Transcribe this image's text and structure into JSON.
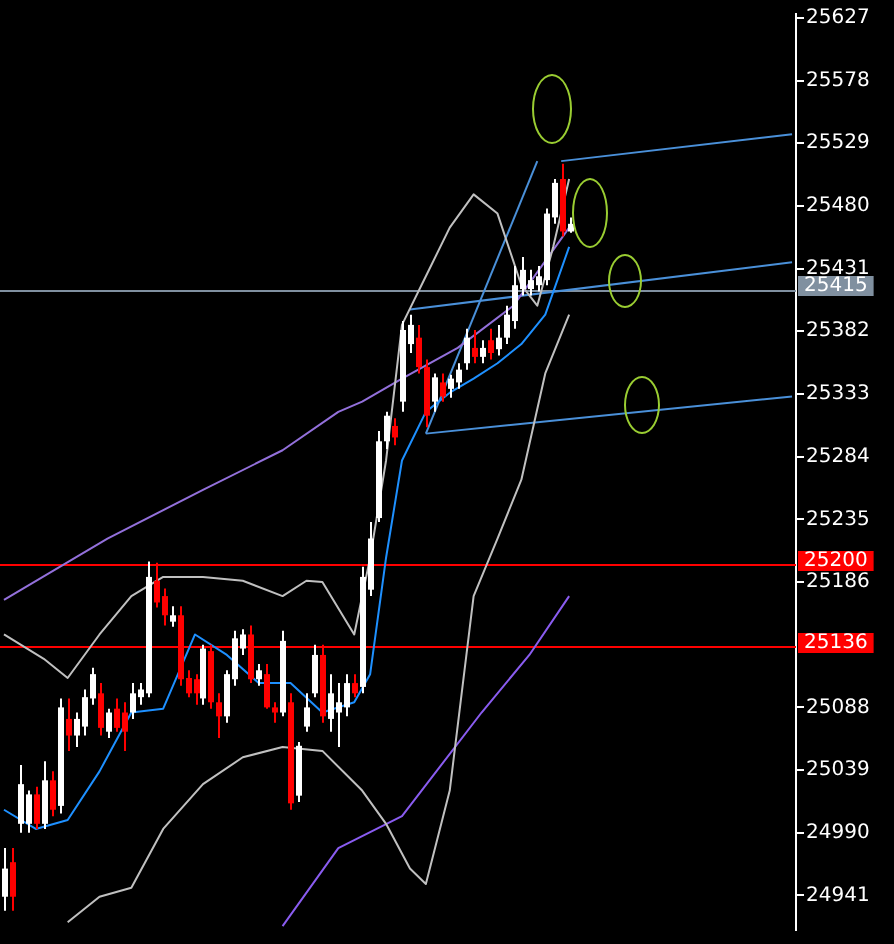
{
  "chart_data": {
    "type": "candlestick",
    "categories": [
      null,
      null,
      null,
      null,
      null,
      null,
      null,
      null,
      null,
      null,
      null,
      null,
      null,
      null,
      null,
      null,
      null,
      null,
      null,
      null,
      null,
      null,
      null,
      null,
      null,
      null,
      null,
      null,
      null,
      null,
      null,
      null,
      null,
      null,
      null,
      null,
      null,
      null,
      null,
      null,
      null,
      null,
      null,
      null,
      null,
      null,
      null,
      null,
      null,
      null,
      null,
      null,
      null,
      null,
      null,
      null,
      null,
      null,
      null,
      null,
      null,
      null,
      null,
      null,
      null,
      null,
      null,
      null,
      null,
      null,
      null,
      null,
      null,
      null,
      null,
      null,
      null,
      null,
      null,
      null,
      null,
      null,
      null,
      null,
      null,
      null,
      null,
      null,
      null,
      null,
      null,
      null,
      null,
      null,
      null,
      null,
      null,
      null,
      null,
      null
    ],
    "ohlc": [
      [
        24940,
        24978,
        24929,
        24962
      ],
      [
        24967,
        24978,
        24929,
        24940
      ],
      [
        24997,
        25043,
        24990,
        25028
      ],
      [
        24997,
        25023,
        24990,
        25020
      ],
      [
        25020,
        25026,
        24993,
        24997
      ],
      [
        24997,
        25046,
        24993,
        25031
      ],
      [
        25031,
        25038,
        25003,
        25008
      ],
      [
        25011,
        25095,
        25005,
        25088
      ],
      [
        25079,
        25095,
        25054,
        25066
      ],
      [
        25066,
        25084,
        25057,
        25079
      ],
      [
        25073,
        25102,
        25066,
        25096
      ],
      [
        25095,
        25119,
        25090,
        25114
      ],
      [
        25099,
        25107,
        25066,
        25072
      ],
      [
        25069,
        25087,
        25064,
        25084
      ],
      [
        25087,
        25095,
        25069,
        25072
      ],
      [
        25084,
        25092,
        25054,
        25069
      ],
      [
        25084,
        25107,
        25079,
        25099
      ],
      [
        25096,
        25107,
        25090,
        25102
      ],
      [
        25099,
        25202,
        25096,
        25190
      ],
      [
        25187,
        25201,
        25166,
        25170
      ],
      [
        25175,
        25181,
        25152,
        25160
      ],
      [
        25155,
        25167,
        25151,
        25160
      ],
      [
        25160,
        25167,
        25105,
        25110
      ],
      [
        25111,
        25117,
        25096,
        25099
      ],
      [
        25110,
        25114,
        25090,
        25099
      ],
      [
        25095,
        25137,
        25090,
        25134
      ],
      [
        25132,
        25137,
        25087,
        25092
      ],
      [
        25092,
        25099,
        25064,
        25081
      ],
      [
        25081,
        25117,
        25076,
        25114
      ],
      [
        25110,
        25148,
        25105,
        25142
      ],
      [
        25134,
        25149,
        25129,
        25145
      ],
      [
        25145,
        25152,
        25107,
        25110
      ],
      [
        25110,
        25122,
        25105,
        25117
      ],
      [
        25114,
        25122,
        25087,
        25088
      ],
      [
        25088,
        25092,
        25076,
        25084
      ],
      [
        25084,
        25148,
        25081,
        25140
      ],
      [
        25092,
        25099,
        25008,
        25013
      ],
      [
        25019,
        25061,
        25014,
        25058
      ],
      [
        25073,
        25099,
        25069,
        25088
      ],
      [
        25099,
        25137,
        25096,
        25129
      ],
      [
        25129,
        25137,
        25076,
        25081
      ],
      [
        25079,
        25114,
        25069,
        25099
      ],
      [
        25084,
        25107,
        25057,
        25092
      ],
      [
        25088,
        25114,
        25081,
        25107
      ],
      [
        25107,
        25114,
        25096,
        25099
      ],
      [
        25104,
        25198,
        25099,
        25190
      ],
      [
        25180,
        25233,
        25175,
        25220
      ],
      [
        25236,
        25304,
        25233,
        25296
      ],
      [
        25296,
        25319,
        25290,
        25316
      ],
      [
        25308,
        25314,
        25293,
        25299
      ],
      [
        25327,
        25390,
        25319,
        25383
      ],
      [
        25372,
        25395,
        25365,
        25387
      ],
      [
        25377,
        25387,
        25349,
        25354
      ],
      [
        25354,
        25360,
        25307,
        25316
      ],
      [
        25327,
        25349,
        25319,
        25346
      ],
      [
        25342,
        25349,
        25327,
        25331
      ],
      [
        25337,
        25348,
        25330,
        25345
      ],
      [
        25342,
        25357,
        25337,
        25352
      ],
      [
        25357,
        25384,
        25352,
        25377
      ],
      [
        25369,
        25383,
        25357,
        25362
      ],
      [
        25362,
        25375,
        25357,
        25369
      ],
      [
        25375,
        25384,
        25360,
        25365
      ],
      [
        25368,
        25387,
        25363,
        25377
      ],
      [
        25377,
        25402,
        25372,
        25395
      ],
      [
        25390,
        25433,
        25384,
        25418
      ],
      [
        25415,
        25440,
        25410,
        25430
      ],
      [
        25415,
        25430,
        25410,
        25422
      ],
      [
        25418,
        25433,
        25413,
        25425
      ],
      [
        25422,
        25478,
        25418,
        25474
      ],
      [
        25471,
        25501,
        25466,
        25498
      ],
      [
        25501,
        25513,
        25456,
        25460
      ],
      [
        25460,
        25471,
        25459,
        25466
      ],
      null,
      null,
      null,
      null,
      null,
      null,
      null,
      null,
      null,
      null,
      null,
      null,
      null,
      null,
      null,
      null,
      null,
      null,
      null,
      null,
      null,
      null,
      null,
      null,
      null,
      null,
      null,
      null
    ],
    "colors": [
      "#ffffff",
      "#ff0000",
      "#ffffff",
      "#ffffff",
      "#ff0000",
      "#ffffff",
      "#ff0000",
      "#ffffff",
      "#ff0000",
      "#ffffff",
      "#ffffff",
      "#ffffff",
      "#ff0000",
      "#ffffff",
      "#ff0000",
      "#ff0000",
      "#ffffff",
      "#ffffff",
      "#ffffff",
      "#ff0000",
      "#ff0000",
      "#ffffff",
      "#ff0000",
      "#ff0000",
      "#ff0000",
      "#ffffff",
      "#ff0000",
      "#ff0000",
      "#ffffff",
      "#ffffff",
      "#ffffff",
      "#ff0000",
      "#ffffff",
      "#ff0000",
      "#ff0000",
      "#ffffff",
      "#ff0000",
      "#ffffff",
      "#ffffff",
      "#ffffff",
      "#ff0000",
      "#ffffff",
      "#ffffff",
      "#ffffff",
      "#ff0000",
      "#ffffff",
      "#ffffff",
      "#ffffff",
      "#ffffff",
      "#ff0000",
      "#ffffff",
      "#ffffff",
      "#ff0000",
      "#ff0000",
      "#ffffff",
      "#ff0000",
      "#ffffff",
      "#ffffff",
      "#ffffff",
      "#ff0000",
      "#ffffff",
      "#ff0000",
      "#ffffff",
      "#ffffff",
      "#ffffff",
      "#ffffff",
      "#ffffff",
      "#ffffff",
      "#ffffff",
      "#ffffff",
      "#ff0000",
      "#ffffff",
      null,
      null,
      null,
      null,
      null,
      null,
      null,
      null,
      null,
      null,
      null,
      null,
      null,
      null,
      null,
      null,
      null,
      null,
      null,
      null,
      null,
      null,
      null,
      null,
      null,
      null,
      null,
      null
    ],
    "series": [
      {
        "type": "line",
        "color": "#c0c0c0",
        "values": [
          25145,
          null,
          null,
          null,
          null,
          25126,
          null,
          null,
          25111,
          null,
          null,
          null,
          25145,
          null,
          null,
          null,
          25175,
          null,
          null,
          null,
          25190,
          null,
          null,
          null,
          null,
          25190,
          null,
          null,
          null,
          null,
          25187,
          null,
          null,
          null,
          null,
          25175,
          null,
          null,
          25187,
          null,
          25186,
          null,
          null,
          null,
          25145,
          null,
          25205,
          null,
          25281,
          null,
          25387,
          null,
          null,
          25425,
          null,
          null,
          25463,
          null,
          null,
          25489,
          null,
          null,
          25474,
          null,
          null,
          25418,
          null,
          25402,
          null,
          25448,
          null,
          25501,
          null,
          null,
          null,
          null,
          null,
          null,
          null,
          null,
          null,
          null,
          null,
          null,
          null,
          null,
          null,
          null,
          null,
          null,
          null,
          null,
          null,
          null,
          null,
          null,
          null,
          null,
          null,
          null
        ]
      },
      {
        "type": "line",
        "color": "#c0c0c0",
        "values": [
          null,
          null,
          null,
          null,
          null,
          null,
          null,
          null,
          24920,
          null,
          null,
          null,
          24940,
          null,
          null,
          null,
          24947,
          null,
          null,
          null,
          24993,
          null,
          null,
          null,
          null,
          25028,
          null,
          null,
          null,
          null,
          25049,
          null,
          null,
          null,
          null,
          25057,
          null,
          null,
          null,
          null,
          25054,
          null,
          null,
          null,
          null,
          25023,
          null,
          null,
          24997,
          null,
          null,
          24962,
          null,
          24950,
          null,
          null,
          25023,
          null,
          null,
          25175,
          null,
          null,
          25220,
          null,
          null,
          25266,
          null,
          null,
          25349,
          null,
          null,
          25395,
          null,
          null,
          null,
          null,
          null,
          null,
          null,
          null,
          null,
          null,
          null,
          null,
          null,
          null,
          null,
          null,
          null,
          null,
          null,
          null,
          null,
          null,
          null,
          null,
          null,
          null,
          null,
          null
        ]
      },
      {
        "type": "line",
        "color": "#1e90ff",
        "values": [
          25008,
          null,
          null,
          null,
          24993,
          null,
          null,
          null,
          25000,
          null,
          null,
          null,
          25038,
          null,
          null,
          null,
          25084,
          null,
          null,
          null,
          25087,
          null,
          null,
          null,
          25145,
          null,
          null,
          null,
          25129,
          null,
          null,
          null,
          25107,
          null,
          null,
          null,
          25107,
          null,
          null,
          null,
          25084,
          null,
          null,
          null,
          25092,
          null,
          25114,
          null,
          25205,
          null,
          25281,
          null,
          null,
          25319,
          null,
          null,
          25334,
          null,
          null,
          25345,
          null,
          null,
          25357,
          null,
          null,
          25372,
          null,
          null,
          25395,
          null,
          null,
          25448,
          null,
          null,
          null,
          null,
          null,
          null,
          null,
          null,
          null,
          null,
          null,
          null,
          null,
          null,
          null,
          null,
          null,
          null,
          null,
          null,
          null,
          null,
          null,
          null,
          null,
          null,
          null,
          null
        ]
      },
      {
        "type": "line",
        "color": "#9370db",
        "values": [
          25172,
          null,
          null,
          null,
          null,
          null,
          null,
          null,
          null,
          null,
          null,
          null,
          null,
          25220,
          null,
          null,
          null,
          null,
          null,
          null,
          null,
          null,
          null,
          null,
          null,
          25258,
          null,
          null,
          null,
          null,
          null,
          null,
          null,
          null,
          null,
          25289,
          null,
          null,
          null,
          null,
          null,
          null,
          25319,
          null,
          null,
          25327,
          null,
          null,
          null,
          null,
          25345,
          null,
          null,
          null,
          null,
          null,
          null,
          25369,
          null,
          null,
          null,
          null,
          null,
          null,
          25402,
          null,
          null,
          null,
          null,
          null,
          null,
          25463,
          null,
          null,
          null,
          null,
          null,
          null,
          null,
          null,
          null,
          null,
          null,
          null,
          null,
          null,
          null,
          null,
          null,
          null,
          null,
          null,
          null,
          null,
          null,
          null,
          null,
          null,
          null,
          null
        ]
      },
      {
        "type": "line",
        "color": "#8a5cf0",
        "values": [
          null,
          null,
          null,
          null,
          null,
          null,
          null,
          null,
          null,
          null,
          null,
          null,
          null,
          null,
          null,
          null,
          null,
          null,
          null,
          null,
          null,
          null,
          null,
          null,
          null,
          null,
          null,
          null,
          null,
          null,
          null,
          null,
          null,
          null,
          null,
          24917,
          null,
          null,
          null,
          null,
          null,
          null,
          24978,
          null,
          null,
          null,
          null,
          null,
          null,
          null,
          25003,
          null,
          null,
          null,
          null,
          null,
          null,
          null,
          null,
          null,
          25084,
          null,
          null,
          null,
          null,
          null,
          25129,
          null,
          null,
          null,
          null,
          25175,
          null,
          null,
          null,
          null,
          null,
          null,
          null,
          null,
          null,
          null,
          null,
          null,
          null,
          null,
          null,
          null,
          null,
          null,
          null,
          null,
          null,
          null,
          null,
          null,
          null,
          null,
          null,
          null
        ]
      },
      {
        "type": "line",
        "color": "#4a90d9",
        "values": [
          null,
          null,
          null,
          null,
          null,
          null,
          null,
          null,
          null,
          null,
          null,
          null,
          null,
          null,
          null,
          null,
          null,
          null,
          null,
          null,
          null,
          null,
          null,
          null,
          null,
          null,
          null,
          null,
          null,
          null,
          null,
          null,
          null,
          null,
          null,
          null,
          null,
          null,
          null,
          null,
          null,
          null,
          null,
          null,
          null,
          null,
          null,
          null,
          null,
          null,
          null,
          null,
          null,
          null,
          null,
          null,
          null,
          null,
          null,
          null,
          null,
          null,
          null,
          null,
          null,
          null,
          null,
          null,
          null,
          null,
          25515,
          null,
          null,
          null,
          null,
          null,
          null,
          null,
          null,
          null,
          null,
          null,
          null,
          null,
          null,
          null,
          null,
          null,
          null,
          null,
          null,
          null,
          null,
          null,
          null,
          null,
          null,
          null,
          null,
          25536
        ]
      },
      {
        "type": "line",
        "color": "#4a90d9",
        "values": [
          null,
          null,
          null,
          null,
          null,
          null,
          null,
          null,
          null,
          null,
          null,
          null,
          null,
          null,
          null,
          null,
          null,
          null,
          null,
          null,
          null,
          null,
          null,
          null,
          null,
          null,
          null,
          null,
          null,
          null,
          null,
          null,
          null,
          null,
          null,
          null,
          null,
          null,
          null,
          null,
          null,
          null,
          null,
          null,
          null,
          null,
          null,
          null,
          null,
          null,
          null,
          25399,
          null,
          null,
          null,
          null,
          null,
          null,
          null,
          null,
          null,
          null,
          null,
          null,
          null,
          null,
          null,
          null,
          null,
          null,
          null,
          null,
          null,
          null,
          null,
          null,
          null,
          null,
          null,
          null,
          null,
          null,
          null,
          null,
          null,
          null,
          null,
          null,
          null,
          null,
          null,
          null,
          null,
          null,
          null,
          null,
          null,
          null,
          null,
          25436
        ]
      },
      {
        "type": "line",
        "color": "#4a90d9",
        "values": [
          null,
          null,
          null,
          null,
          null,
          null,
          null,
          null,
          null,
          null,
          null,
          null,
          null,
          null,
          null,
          null,
          null,
          null,
          null,
          null,
          null,
          null,
          null,
          null,
          null,
          null,
          null,
          null,
          null,
          null,
          null,
          null,
          null,
          null,
          null,
          null,
          null,
          null,
          null,
          null,
          null,
          null,
          null,
          null,
          null,
          null,
          null,
          null,
          null,
          null,
          null,
          null,
          null,
          25302,
          null,
          null,
          null,
          null,
          null,
          null,
          null,
          null,
          null,
          null,
          null,
          null,
          null,
          null,
          null,
          null,
          null,
          null,
          null,
          null,
          null,
          null,
          null,
          null,
          null,
          null,
          null,
          null,
          null,
          null,
          null,
          null,
          null,
          null,
          null,
          null,
          null,
          null,
          null,
          null,
          null,
          null,
          null,
          null,
          null,
          25331
        ]
      },
      {
        "type": "line",
        "color": "#4a90d9",
        "values": [
          null,
          null,
          null,
          null,
          null,
          null,
          null,
          null,
          null,
          null,
          null,
          null,
          null,
          null,
          null,
          null,
          null,
          null,
          null,
          null,
          null,
          null,
          null,
          null,
          null,
          null,
          null,
          null,
          null,
          null,
          null,
          null,
          null,
          null,
          null,
          null,
          null,
          null,
          null,
          null,
          null,
          null,
          null,
          null,
          null,
          null,
          null,
          null,
          null,
          null,
          null,
          null,
          null,
          25302,
          null,
          null,
          null,
          null,
          null,
          null,
          null,
          null,
          null,
          null,
          null,
          null,
          null,
          25515,
          null,
          null,
          null,
          null,
          null,
          null,
          null,
          null,
          null,
          null,
          null,
          null,
          null,
          null,
          null,
          null,
          null,
          null,
          null,
          null,
          null,
          null,
          null,
          null,
          null,
          null,
          null,
          null,
          null,
          null,
          null,
          null
        ]
      }
    ],
    "ylim": [
      24914,
      25630
    ],
    "yticks": [
      24941,
      24990,
      25039,
      25088,
      25186,
      25235,
      25284,
      25333,
      25382,
      25431,
      25480,
      25529,
      25578,
      25627
    ],
    "ref_lines": [
      {
        "axis": "y",
        "value": 25200,
        "label": "25200",
        "color": "#ff0000"
      },
      {
        "axis": "y",
        "value": 25136,
        "label": "25136",
        "color": "#ff0000"
      },
      {
        "axis": "y",
        "value": 25415,
        "label": "25415",
        "color": "#8090a0"
      }
    ],
    "tick_labels": "y",
    "marker": "none",
    "legend": false
  }
}
